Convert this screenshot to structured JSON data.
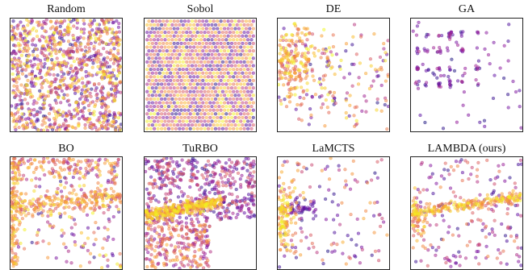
{
  "figure": {
    "colormap": [
      "#1a1180",
      "#5b0ea3",
      "#8f169b",
      "#be3a7c",
      "#e0625a",
      "#f69039",
      "#fbc128",
      "#f0f921"
    ]
  },
  "chart_data": [
    {
      "type": "scatter",
      "title": "Random",
      "pattern": "uniform",
      "n": 1100,
      "xlim": [
        0,
        1
      ],
      "ylim": [
        0,
        1
      ],
      "grid": false
    },
    {
      "type": "scatter",
      "title": "Sobol",
      "pattern": "lattice",
      "n": 900,
      "xlim": [
        0,
        1
      ],
      "ylim": [
        0,
        1
      ],
      "grid": false
    },
    {
      "type": "scatter",
      "title": "DE",
      "pattern": "dense-upper-left",
      "n": 360,
      "xlim": [
        0,
        1
      ],
      "ylim": [
        0,
        1
      ],
      "grid": false
    },
    {
      "type": "scatter",
      "title": "GA",
      "pattern": "sparse-clusters",
      "n": 150,
      "xlim": [
        0,
        1
      ],
      "ylim": [
        0,
        1
      ],
      "grid": false
    },
    {
      "type": "scatter",
      "title": "BO",
      "pattern": "edges-and-band",
      "n": 650,
      "xlim": [
        0,
        1
      ],
      "ylim": [
        0,
        1
      ],
      "grid": false
    },
    {
      "type": "scatter",
      "title": "TuRBO",
      "pattern": "wedge-band",
      "n": 1100,
      "xlim": [
        0,
        1
      ],
      "ylim": [
        0,
        1
      ],
      "grid": false
    },
    {
      "type": "scatter",
      "title": "LaMCTS",
      "pattern": "left-cluster",
      "n": 300,
      "xlim": [
        0,
        1
      ],
      "ylim": [
        0,
        1
      ],
      "grid": false
    },
    {
      "type": "scatter",
      "title": "LAMBDA (ours)",
      "pattern": "thin-band",
      "n": 450,
      "xlim": [
        0,
        1
      ],
      "ylim": [
        0,
        1
      ],
      "grid": false
    }
  ]
}
